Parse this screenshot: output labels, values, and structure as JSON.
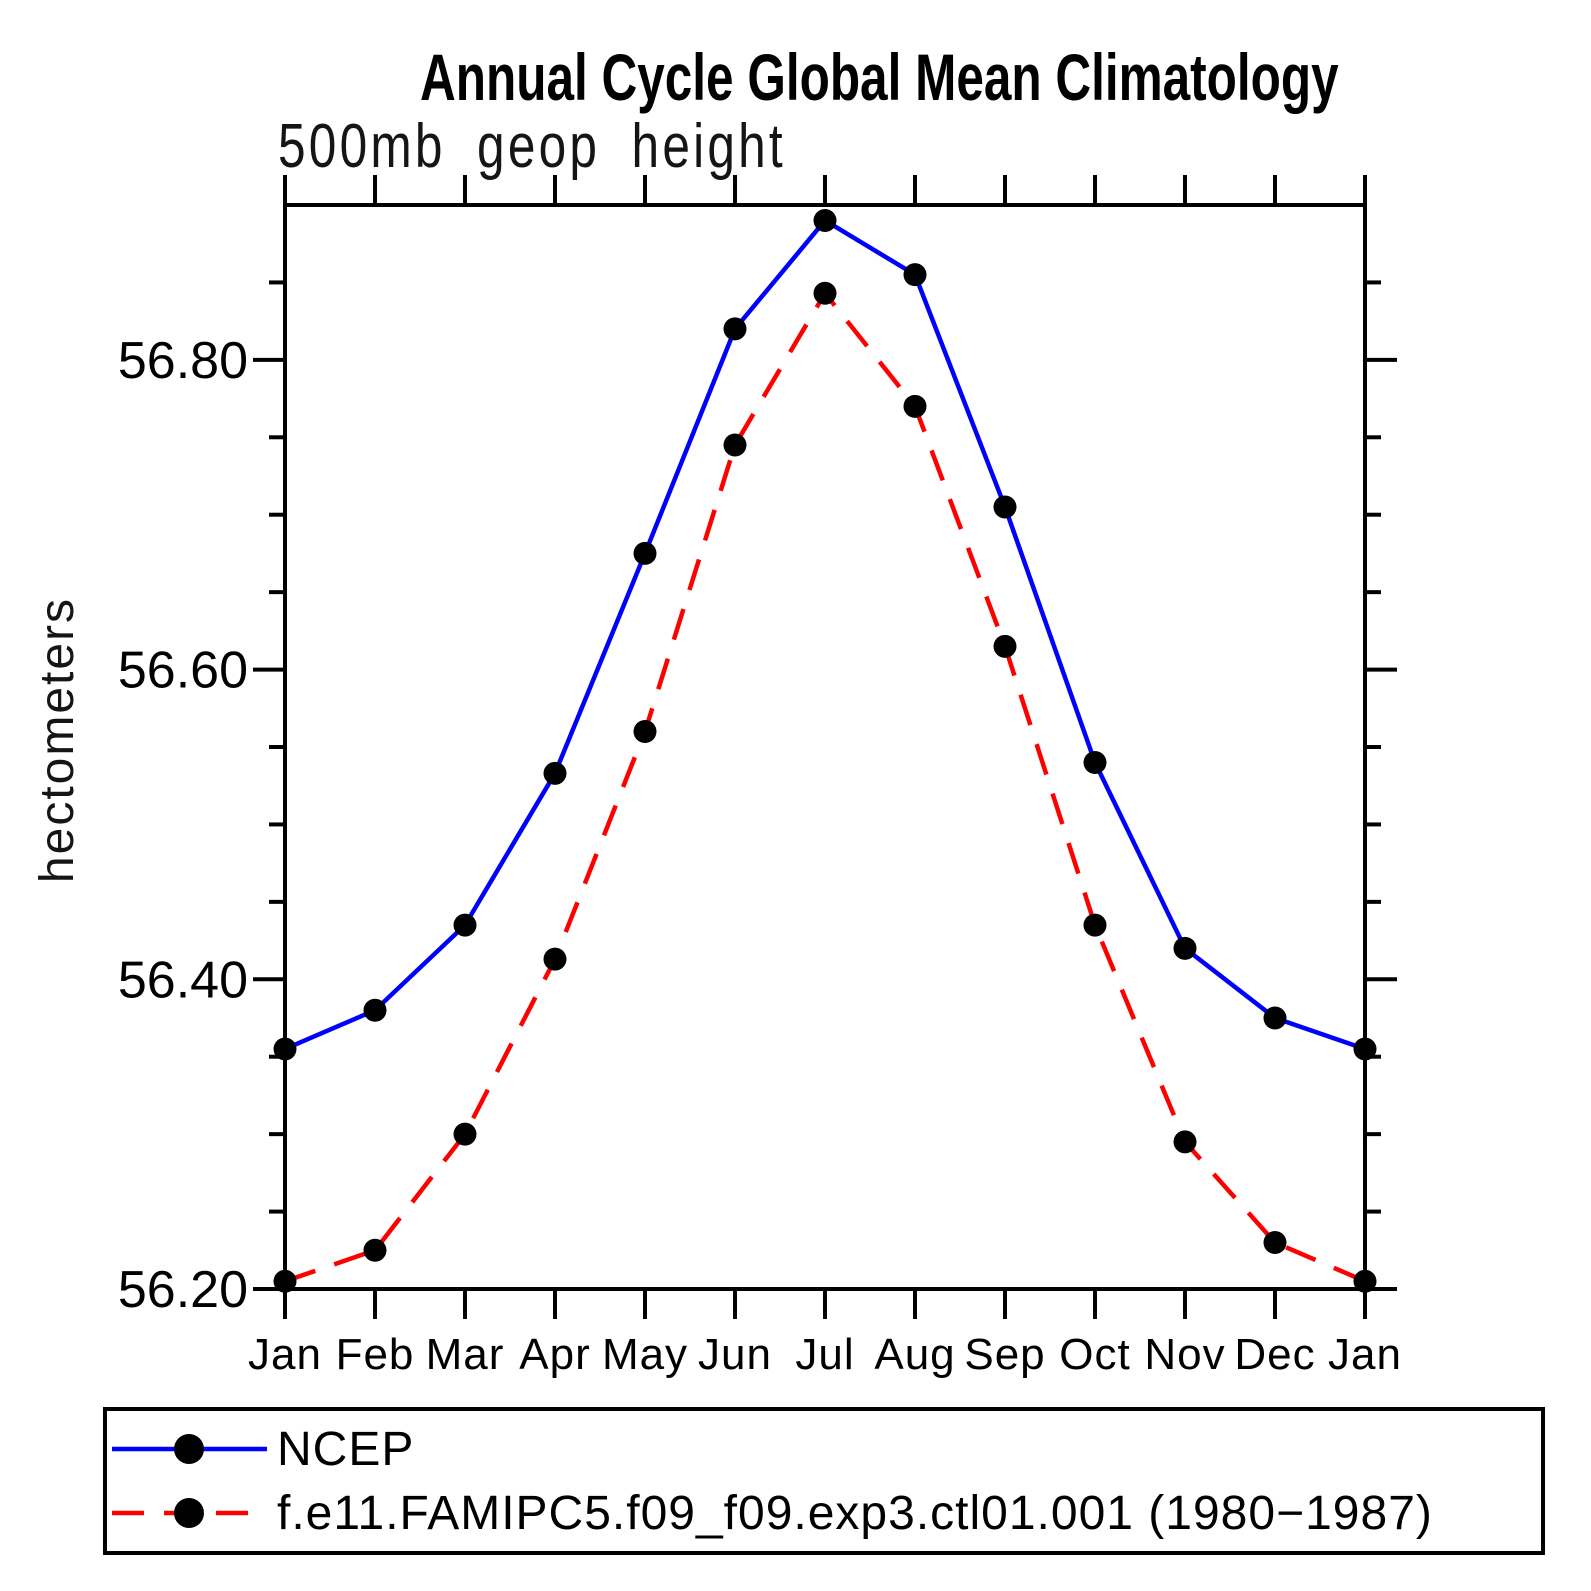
{
  "title": "Annual Cycle Global Mean Climatology",
  "subtitle": "500mb geop height",
  "y_axis_label": "hectometers",
  "chart_data": {
    "type": "line",
    "categories": [
      "Jan",
      "Feb",
      "Mar",
      "Apr",
      "May",
      "Jun",
      "Jul",
      "Aug",
      "Sep",
      "Oct",
      "Nov",
      "Dec",
      "Jan"
    ],
    "series": [
      {
        "name": "NCEP",
        "color": "#0000ff",
        "style": "solid",
        "marker": "circle",
        "marker_color": "#000000",
        "values": [
          56.355,
          56.38,
          56.435,
          56.533,
          56.675,
          56.82,
          56.89,
          56.855,
          56.705,
          56.54,
          56.42,
          56.375,
          56.355
        ]
      },
      {
        "name": "f.e11.FAMIPC5.f09_f09.exp3.ctl01.001 (1980−1987)",
        "color": "#ff0000",
        "style": "dashed",
        "marker": "circle",
        "marker_color": "#000000",
        "values": [
          56.205,
          56.225,
          56.3,
          56.413,
          56.56,
          56.745,
          56.843,
          56.77,
          56.615,
          56.435,
          56.295,
          56.23,
          56.205
        ]
      }
    ],
    "xlabel": "",
    "ylabel": "hectometers",
    "ylim": [
      56.2,
      56.9
    ],
    "y_major_ticks": [
      56.2,
      56.4,
      56.6,
      56.8
    ],
    "y_major_tick_labels": [
      "56.20",
      "56.40",
      "56.60",
      "56.80"
    ],
    "y_minor_step": 0.05,
    "grid": false,
    "legend_position": "bottom"
  }
}
